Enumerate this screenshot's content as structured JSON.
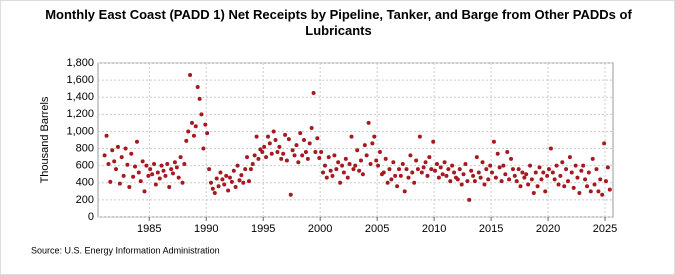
{
  "chart_data": {
    "type": "scatter",
    "title": "Monthly East Coast (PADD 1) Net Receipts by Pipeline, Tanker, and Barge from Other PADDs of Lubricants",
    "y_label": "Thousand Barrels",
    "source": "Source: U.S. Energy Information Administration",
    "color": "#a6191f",
    "grid": true,
    "xlim": [
      1980.5,
      2025.7
    ],
    "xticks": [
      1985,
      1990,
      1995,
      2000,
      2005,
      2010,
      2015,
      2020,
      2025
    ],
    "ylim": [
      0,
      1800
    ],
    "yticks": [
      0,
      200,
      400,
      600,
      800,
      {
        "value": 1000,
        "label": "1,000"
      },
      {
        "value": 1200,
        "label": "1,200"
      },
      {
        "value": 1400,
        "label": "1,400"
      },
      {
        "value": 1600,
        "label": "1,600"
      },
      {
        "value": 1800,
        "label": "1,800"
      }
    ],
    "x": [
      1981.08,
      1981.25,
      1981.42,
      1981.58,
      1981.75,
      1981.92,
      1982.08,
      1982.25,
      1982.42,
      1982.58,
      1982.75,
      1982.92,
      1983.08,
      1983.25,
      1983.42,
      1983.58,
      1983.75,
      1983.92,
      1984.08,
      1984.25,
      1984.42,
      1984.58,
      1984.75,
      1984.92,
      1985.08,
      1985.25,
      1985.42,
      1985.58,
      1985.75,
      1985.92,
      1986.08,
      1986.25,
      1986.42,
      1986.58,
      1986.75,
      1986.92,
      1987.08,
      1987.25,
      1987.42,
      1987.58,
      1987.75,
      1987.92,
      1988.08,
      1988.25,
      1988.42,
      1988.58,
      1988.75,
      1988.92,
      1989.08,
      1989.25,
      1989.42,
      1989.58,
      1989.75,
      1989.92,
      1990.08,
      1990.25,
      1990.42,
      1990.58,
      1990.75,
      1990.92,
      1991.08,
      1991.25,
      1991.42,
      1991.58,
      1991.75,
      1991.92,
      1992.08,
      1992.25,
      1992.42,
      1992.58,
      1992.75,
      1992.92,
      1993.08,
      1993.25,
      1993.42,
      1993.58,
      1993.75,
      1993.92,
      1994.08,
      1994.25,
      1994.42,
      1994.58,
      1994.75,
      1994.92,
      1995.08,
      1995.25,
      1995.42,
      1995.58,
      1995.75,
      1995.92,
      1996.08,
      1996.25,
      1996.42,
      1996.58,
      1996.75,
      1996.92,
      1997.08,
      1997.25,
      1997.42,
      1997.58,
      1997.75,
      1997.92,
      1998.08,
      1998.25,
      1998.42,
      1998.58,
      1998.75,
      1998.92,
      1999.08,
      1999.25,
      1999.42,
      1999.58,
      1999.75,
      1999.92,
      2000.08,
      2000.25,
      2000.42,
      2000.58,
      2000.75,
      2000.92,
      2001.08,
      2001.25,
      2001.42,
      2001.58,
      2001.75,
      2001.92,
      2002.08,
      2002.25,
      2002.42,
      2002.58,
      2002.75,
      2002.92,
      2003.08,
      2003.25,
      2003.42,
      2003.58,
      2003.75,
      2003.92,
      2004.08,
      2004.25,
      2004.42,
      2004.58,
      2004.75,
      2004.92,
      2005.08,
      2005.25,
      2005.42,
      2005.58,
      2005.75,
      2005.92,
      2006.08,
      2006.25,
      2006.42,
      2006.58,
      2006.75,
      2006.92,
      2007.08,
      2007.25,
      2007.42,
      2007.58,
      2007.75,
      2007.92,
      2008.08,
      2008.25,
      2008.42,
      2008.58,
      2008.75,
      2008.92,
      2009.08,
      2009.25,
      2009.42,
      2009.58,
      2009.75,
      2009.92,
      2010.08,
      2010.25,
      2010.42,
      2010.58,
      2010.75,
      2010.92,
      2011.08,
      2011.25,
      2011.42,
      2011.58,
      2011.75,
      2011.92,
      2012.08,
      2012.25,
      2012.42,
      2012.58,
      2012.75,
      2012.92,
      2013.08,
      2013.25,
      2013.42,
      2013.58,
      2013.75,
      2013.92,
      2014.08,
      2014.25,
      2014.42,
      2014.58,
      2014.75,
      2014.92,
      2015.08,
      2015.25,
      2015.42,
      2015.58,
      2015.75,
      2015.92,
      2016.08,
      2016.25,
      2016.42,
      2016.58,
      2016.75,
      2016.92,
      2017.08,
      2017.25,
      2017.42,
      2017.58,
      2017.75,
      2017.92,
      2018.08,
      2018.25,
      2018.42,
      2018.58,
      2018.75,
      2018.92,
      2019.08,
      2019.25,
      2019.42,
      2019.58,
      2019.75,
      2019.92,
      2020.08,
      2020.25,
      2020.42,
      2020.58,
      2020.75,
      2020.92,
      2021.08,
      2021.25,
      2021.42,
      2021.58,
      2021.75,
      2021.92,
      2022.08,
      2022.25,
      2022.42,
      2022.58,
      2022.75,
      2022.92,
      2023.08,
      2023.25,
      2023.42,
      2023.58,
      2023.75,
      2023.92,
      2024.08,
      2024.25,
      2024.42,
      2024.58,
      2024.75,
      2024.92,
      2025.08,
      2025.25,
      2025.42
    ],
    "values": [
      720,
      950,
      620,
      410,
      780,
      650,
      560,
      820,
      390,
      700,
      480,
      800,
      610,
      350,
      740,
      470,
      590,
      880,
      520,
      420,
      650,
      300,
      600,
      480,
      560,
      500,
      620,
      380,
      520,
      450,
      600,
      540,
      480,
      620,
      350,
      560,
      510,
      640,
      580,
      460,
      700,
      400,
      620,
      890,
      1000,
      1660,
      1100,
      950,
      1060,
      1520,
      1380,
      1200,
      800,
      1080,
      980,
      560,
      400,
      330,
      280,
      450,
      360,
      520,
      440,
      380,
      480,
      310,
      460,
      410,
      540,
      350,
      600,
      430,
      490,
      400,
      560,
      700,
      420,
      560,
      620,
      720,
      940,
      680,
      790,
      760,
      820,
      700,
      940,
      860,
      740,
      1000,
      900,
      760,
      820,
      680,
      740,
      960,
      660,
      910,
      260,
      780,
      720,
      840,
      640,
      980,
      720,
      900,
      760,
      680,
      860,
      1040,
      1450,
      760,
      920,
      690,
      760,
      520,
      600,
      460,
      700,
      540,
      480,
      720,
      560,
      640,
      400,
      600,
      520,
      680,
      460,
      620,
      940,
      560,
      600,
      780,
      540,
      660,
      500,
      840,
      720,
      1100,
      620,
      860,
      940,
      660,
      600,
      760,
      500,
      520,
      680,
      400,
      560,
      440,
      640,
      480,
      360,
      560,
      480,
      620,
      300,
      560,
      460,
      720,
      520,
      400,
      660,
      560,
      940,
      520,
      580,
      640,
      480,
      700,
      560,
      880,
      540,
      620,
      460,
      580,
      500,
      640,
      480,
      560,
      420,
      600,
      520,
      460,
      440,
      560,
      380,
      500,
      620,
      420,
      200,
      540,
      480,
      420,
      700,
      520,
      460,
      640,
      380,
      560,
      440,
      600,
      520,
      880,
      460,
      740,
      580,
      420,
      600,
      500,
      760,
      440,
      680,
      560,
      480,
      420,
      560,
      360,
      520,
      460,
      500,
      380,
      600,
      440,
      280,
      520,
      360,
      580,
      440,
      520,
      300,
      480,
      560,
      800,
      520,
      440,
      600,
      380,
      480,
      640,
      360,
      560,
      420,
      700,
      520,
      340,
      600,
      460,
      280,
      540,
      600,
      440,
      360,
      520,
      300,
      680,
      380,
      560,
      300,
      440,
      260,
      860,
      420,
      580,
      320
    ]
  }
}
